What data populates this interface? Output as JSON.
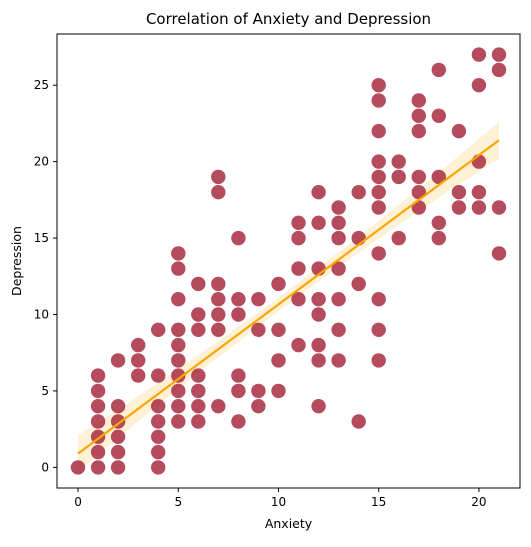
{
  "chart_data": {
    "type": "scatter",
    "title": "Correlation of Anxiety and Depression",
    "xlabel": "Anxiety",
    "ylabel": "Depression",
    "xlim": [
      -1.05,
      22.05
    ],
    "ylim": [
      -1.35,
      28.35
    ],
    "xticks": [
      0,
      5,
      10,
      15,
      20
    ],
    "yticks": [
      0,
      5,
      10,
      15,
      20,
      25
    ],
    "grid": false,
    "colors": {
      "points": "#a31f34",
      "regression_line": "#ffa500",
      "confidence_band": "#ffa500"
    },
    "points": [
      [
        0,
        0
      ],
      [
        1,
        0
      ],
      [
        1,
        1
      ],
      [
        1,
        2
      ],
      [
        1,
        3
      ],
      [
        1,
        4
      ],
      [
        1,
        5
      ],
      [
        1,
        6
      ],
      [
        2,
        0
      ],
      [
        2,
        1
      ],
      [
        2,
        2
      ],
      [
        2,
        3
      ],
      [
        2,
        4
      ],
      [
        2,
        7
      ],
      [
        3,
        6
      ],
      [
        3,
        7
      ],
      [
        3,
        8
      ],
      [
        4,
        0
      ],
      [
        4,
        1
      ],
      [
        4,
        2
      ],
      [
        4,
        3
      ],
      [
        4,
        4
      ],
      [
        4,
        6
      ],
      [
        4,
        9
      ],
      [
        5,
        3
      ],
      [
        5,
        4
      ],
      [
        5,
        5
      ],
      [
        5,
        6
      ],
      [
        5,
        7
      ],
      [
        5,
        8
      ],
      [
        5,
        9
      ],
      [
        5,
        11
      ],
      [
        5,
        13
      ],
      [
        5,
        14
      ],
      [
        6,
        3
      ],
      [
        6,
        4
      ],
      [
        6,
        5
      ],
      [
        6,
        6
      ],
      [
        6,
        9
      ],
      [
        6,
        10
      ],
      [
        6,
        12
      ],
      [
        7,
        4
      ],
      [
        7,
        9
      ],
      [
        7,
        10
      ],
      [
        7,
        11
      ],
      [
        7,
        12
      ],
      [
        7,
        18
      ],
      [
        7,
        19
      ],
      [
        8,
        3
      ],
      [
        8,
        5
      ],
      [
        8,
        6
      ],
      [
        8,
        10
      ],
      [
        8,
        11
      ],
      [
        8,
        15
      ],
      [
        9,
        4
      ],
      [
        9,
        5
      ],
      [
        9,
        9
      ],
      [
        9,
        11
      ],
      [
        10,
        5
      ],
      [
        10,
        7
      ],
      [
        10,
        9
      ],
      [
        10,
        12
      ],
      [
        11,
        8
      ],
      [
        11,
        11
      ],
      [
        11,
        13
      ],
      [
        11,
        15
      ],
      [
        11,
        16
      ],
      [
        12,
        4
      ],
      [
        12,
        7
      ],
      [
        12,
        8
      ],
      [
        12,
        10
      ],
      [
        12,
        11
      ],
      [
        12,
        13
      ],
      [
        12,
        16
      ],
      [
        12,
        18
      ],
      [
        13,
        7
      ],
      [
        13,
        9
      ],
      [
        13,
        11
      ],
      [
        13,
        13
      ],
      [
        13,
        15
      ],
      [
        13,
        16
      ],
      [
        13,
        17
      ],
      [
        14,
        3
      ],
      [
        14,
        12
      ],
      [
        14,
        15
      ],
      [
        14,
        18
      ],
      [
        15,
        7
      ],
      [
        15,
        9
      ],
      [
        15,
        11
      ],
      [
        15,
        14
      ],
      [
        15,
        17
      ],
      [
        15,
        18
      ],
      [
        15,
        19
      ],
      [
        15,
        20
      ],
      [
        15,
        22
      ],
      [
        15,
        24
      ],
      [
        15,
        25
      ],
      [
        16,
        15
      ],
      [
        16,
        19
      ],
      [
        16,
        20
      ],
      [
        17,
        17
      ],
      [
        17,
        18
      ],
      [
        17,
        19
      ],
      [
        17,
        22
      ],
      [
        17,
        23
      ],
      [
        17,
        24
      ],
      [
        18,
        15
      ],
      [
        18,
        16
      ],
      [
        18,
        19
      ],
      [
        18,
        23
      ],
      [
        18,
        26
      ],
      [
        19,
        17
      ],
      [
        19,
        18
      ],
      [
        19,
        22
      ],
      [
        20,
        17
      ],
      [
        20,
        18
      ],
      [
        20,
        20
      ],
      [
        20,
        25
      ],
      [
        20,
        27
      ],
      [
        21,
        14
      ],
      [
        21,
        17
      ],
      [
        21,
        26
      ],
      [
        21,
        27
      ]
    ],
    "regression": {
      "x_range": [
        0,
        21
      ],
      "y_at_start": 0.9,
      "y_at_end": 21.4,
      "ci_half_width_at_ends": 1.2,
      "ci_half_width_at_center": 0.45
    }
  }
}
